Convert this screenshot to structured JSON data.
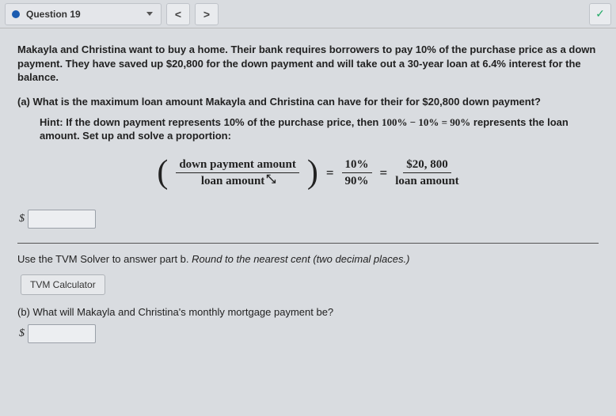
{
  "topbar": {
    "question_label": "Question 19",
    "prev_label": "<",
    "next_label": ">",
    "check_label": "✓"
  },
  "intro": "Makayla and Christina want to buy a home. Their bank requires borrowers to pay 10% of the purchase price as a down payment. They have saved up $20,800 for the down payment and will take out a 30-year loan at 6.4% interest for the balance.",
  "part_a": {
    "prefix": "(a) ",
    "question": "What is the maximum loan amount Makayla and Christina can have for their for $20,800 down payment?",
    "hint_prefix": "Hint: ",
    "hint_text_1": "If the down payment represents 10% of the purchase price, then ",
    "hint_math": "100% − 10% = 90%",
    "hint_text_2": " represents the loan amount. Set up and solve a proportion:"
  },
  "formula": {
    "f1_num": "down payment amount",
    "f1_den": "loan amount",
    "eq1": "=",
    "f2_num": "10%",
    "f2_den": "90%",
    "eq2": "=",
    "f3_num": "$20, 800",
    "f3_den": "loan amount"
  },
  "answer_a": {
    "currency": "$",
    "value": ""
  },
  "part_b": {
    "instr_1": "Use the TVM Solver to answer part b. ",
    "instr_2": "Round to the nearest cent (two decimal places.)",
    "tvm_button": "TVM Calculator",
    "question_prefix": "(b) ",
    "question": "What will Makayla and Christina's monthly mortgage payment be?",
    "currency": "$",
    "value": ""
  },
  "colors": {
    "background": "#d9dce0",
    "dot": "#1a5bb0",
    "border": "#bfc3c9",
    "text": "#222222"
  }
}
